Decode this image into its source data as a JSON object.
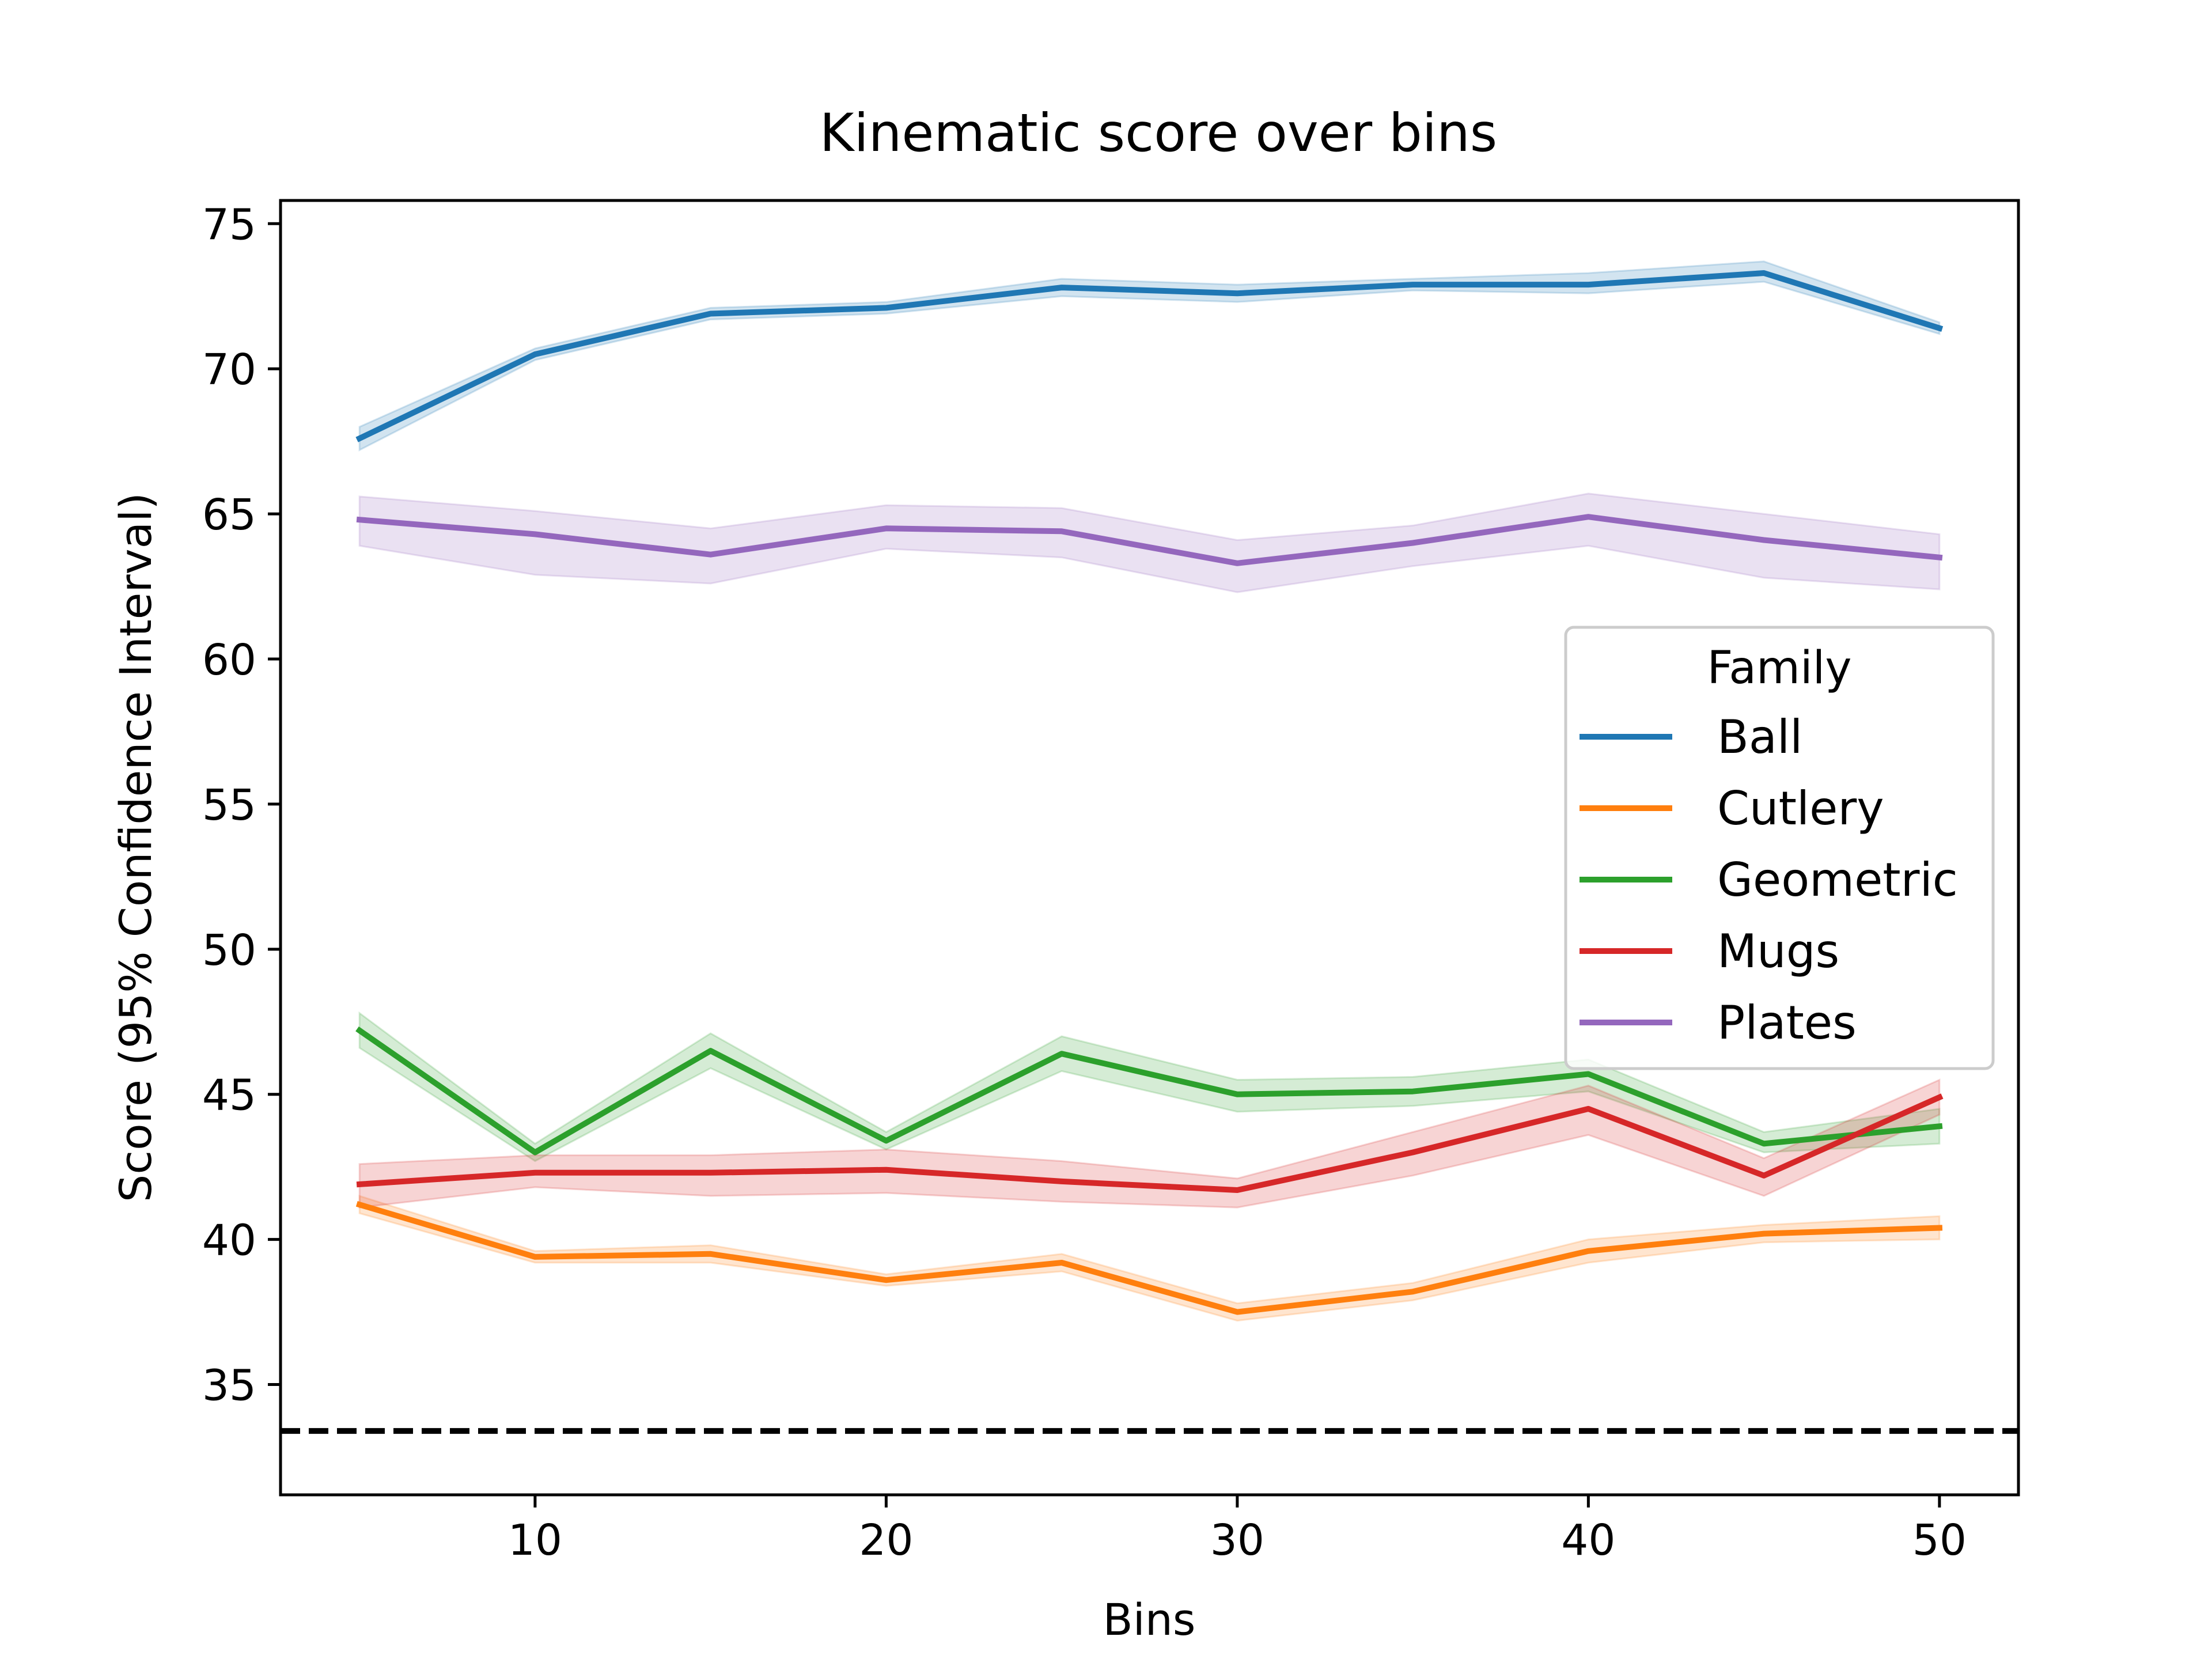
{
  "chart_data": {
    "type": "line",
    "title": "Kinematic score over bins",
    "xlabel": "Bins",
    "ylabel": "Score (95% Confidence Interval)",
    "xlim": [
      2.75,
      52.25
    ],
    "ylim": [
      31.2,
      75.8
    ],
    "xticks": [
      10,
      20,
      30,
      40,
      50
    ],
    "yticks": [
      35,
      40,
      45,
      50,
      55,
      60,
      65,
      70,
      75
    ],
    "grid": false,
    "legend": {
      "title": "Family",
      "placement": "center-right"
    },
    "reference_line": {
      "y": 33.4,
      "style": "dashed",
      "color": "#000000"
    },
    "x": [
      5,
      10,
      15,
      20,
      25,
      30,
      35,
      40,
      45,
      50
    ],
    "series": [
      {
        "name": "Ball",
        "color": "#1f77b4",
        "values": [
          67.6,
          70.5,
          71.9,
          72.1,
          72.8,
          72.6,
          72.9,
          72.9,
          73.3,
          71.4
        ],
        "ci_lower": [
          67.2,
          70.3,
          71.7,
          71.9,
          72.5,
          72.3,
          72.7,
          72.6,
          73.0,
          71.2
        ],
        "ci_upper": [
          68.0,
          70.7,
          72.1,
          72.3,
          73.1,
          72.9,
          73.1,
          73.3,
          73.7,
          71.6
        ]
      },
      {
        "name": "Cutlery",
        "color": "#ff7f0e",
        "values": [
          41.2,
          39.4,
          39.5,
          38.6,
          39.2,
          37.5,
          38.2,
          39.6,
          40.2,
          40.4
        ],
        "ci_lower": [
          40.9,
          39.2,
          39.2,
          38.4,
          38.9,
          37.2,
          37.9,
          39.2,
          39.9,
          40.0
        ],
        "ci_upper": [
          41.5,
          39.6,
          39.8,
          38.8,
          39.5,
          37.8,
          38.5,
          40.0,
          40.5,
          40.8
        ]
      },
      {
        "name": "Geometric",
        "color": "#2ca02c",
        "values": [
          47.2,
          43.0,
          46.5,
          43.4,
          46.4,
          45.0,
          45.1,
          45.7,
          43.3,
          43.9
        ],
        "ci_lower": [
          46.6,
          42.7,
          45.9,
          43.1,
          45.8,
          44.4,
          44.6,
          45.1,
          43.0,
          43.3
        ],
        "ci_upper": [
          47.8,
          43.3,
          47.1,
          43.7,
          47.0,
          45.5,
          45.6,
          46.2,
          43.7,
          44.5
        ]
      },
      {
        "name": "Mugs",
        "color": "#d62728",
        "values": [
          41.9,
          42.3,
          42.3,
          42.4,
          42.0,
          41.7,
          43.0,
          44.5,
          42.2,
          44.9
        ],
        "ci_lower": [
          41.1,
          41.8,
          41.5,
          41.6,
          41.3,
          41.1,
          42.2,
          43.6,
          41.5,
          44.3
        ],
        "ci_upper": [
          42.6,
          42.9,
          42.9,
          43.1,
          42.7,
          42.1,
          43.7,
          45.3,
          42.8,
          45.5
        ]
      },
      {
        "name": "Plates",
        "color": "#9467bd",
        "values": [
          64.8,
          64.3,
          63.6,
          64.5,
          64.4,
          63.3,
          64.0,
          64.9,
          64.1,
          63.5
        ],
        "ci_lower": [
          63.9,
          62.9,
          62.6,
          63.8,
          63.5,
          62.3,
          63.2,
          63.9,
          62.8,
          62.4
        ],
        "ci_upper": [
          65.6,
          65.1,
          64.5,
          65.3,
          65.2,
          64.1,
          64.6,
          65.7,
          65.0,
          64.3
        ]
      }
    ]
  }
}
